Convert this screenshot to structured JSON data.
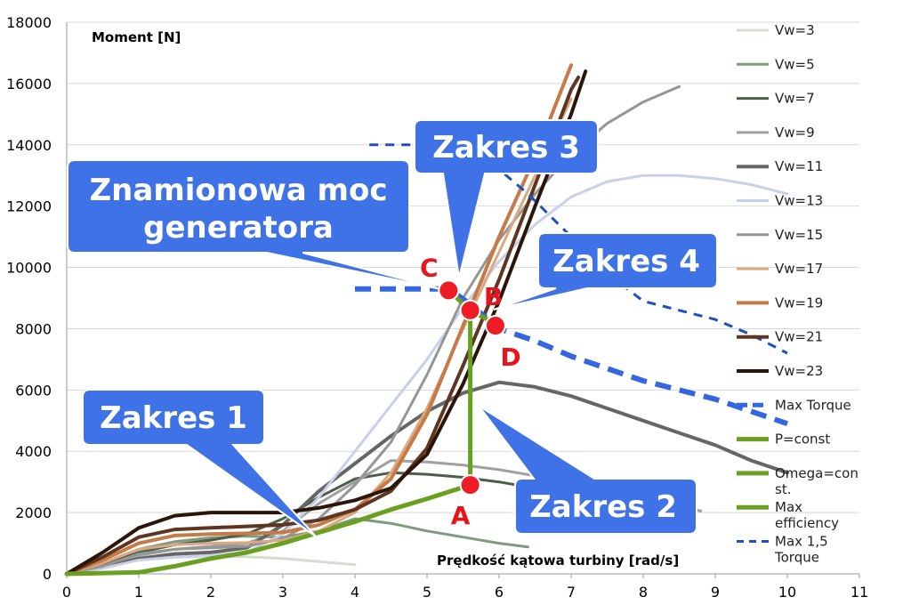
{
  "chart_data": {
    "type": "line",
    "title": "",
    "ylabel": "Moment [N]",
    "xlabel": "Prędkość kątowa turbiny [rad/s]",
    "xlim": [
      0,
      11
    ],
    "ylim": [
      0,
      18000
    ],
    "x_ticks": [
      "0",
      "1",
      "2",
      "3",
      "4",
      "5",
      "6",
      "7",
      "8",
      "9",
      "10",
      "11"
    ],
    "y_ticks": [
      "0",
      "2000",
      "4000",
      "6000",
      "8000",
      "10000",
      "12000",
      "14000",
      "16000",
      "18000"
    ],
    "series": [
      {
        "name": "Vw=3",
        "color": "#d6dcd2",
        "width": 3,
        "points": [
          [
            0,
            0
          ],
          [
            0.5,
            250
          ],
          [
            1,
            450
          ],
          [
            1.5,
            540
          ],
          [
            2,
            570
          ],
          [
            2.5,
            560
          ],
          [
            3,
            500
          ],
          [
            3.5,
            400
          ],
          [
            4,
            300
          ]
        ]
      },
      {
        "name": "Vw=5",
        "color": "#7f9a7f",
        "width": 3,
        "points": [
          [
            0,
            0
          ],
          [
            0.5,
            350
          ],
          [
            1,
            800
          ],
          [
            1.5,
            1050
          ],
          [
            2,
            1180
          ],
          [
            2.5,
            1230
          ],
          [
            3,
            1190
          ],
          [
            3.5,
            1400
          ],
          [
            4,
            1800
          ],
          [
            4.5,
            1650
          ],
          [
            5,
            1400
          ],
          [
            5.5,
            1200
          ],
          [
            6,
            1000
          ],
          [
            6.4,
            880
          ]
        ]
      },
      {
        "name": "Vw=7",
        "color": "#4a5e4a",
        "width": 3,
        "points": [
          [
            0,
            0
          ],
          [
            0.5,
            300
          ],
          [
            1,
            700
          ],
          [
            1.5,
            950
          ],
          [
            2,
            1100
          ],
          [
            2.5,
            1300
          ],
          [
            3,
            1800
          ],
          [
            3.5,
            2500
          ],
          [
            4,
            3100
          ],
          [
            4.5,
            3300
          ],
          [
            5,
            3250
          ],
          [
            5.5,
            3150
          ],
          [
            6,
            3000
          ],
          [
            6.5,
            2800
          ],
          [
            7,
            2500
          ],
          [
            7.5,
            2200
          ],
          [
            7.9,
            2100
          ]
        ]
      },
      {
        "name": "Vw=9",
        "color": "#a0a0a0",
        "width": 3,
        "points": [
          [
            0,
            0
          ],
          [
            0.5,
            250
          ],
          [
            1,
            600
          ],
          [
            1.5,
            800
          ],
          [
            2,
            900
          ],
          [
            2.5,
            1000
          ],
          [
            3,
            1400
          ],
          [
            3.5,
            2300
          ],
          [
            4,
            3000
          ],
          [
            4.5,
            3700
          ],
          [
            5,
            3650
          ],
          [
            5.5,
            3550
          ],
          [
            6,
            3400
          ],
          [
            6.5,
            3200
          ],
          [
            7,
            3000
          ],
          [
            7.5,
            2800
          ],
          [
            8,
            2500
          ],
          [
            8.5,
            2200
          ],
          [
            8.8,
            2050
          ]
        ]
      },
      {
        "name": "Vw=11",
        "color": "#666666",
        "width": 4,
        "points": [
          [
            0,
            0
          ],
          [
            0.5,
            200
          ],
          [
            1,
            500
          ],
          [
            1.5,
            650
          ],
          [
            2,
            700
          ],
          [
            2.5,
            850
          ],
          [
            3,
            1600
          ],
          [
            3.5,
            2700
          ],
          [
            4,
            3600
          ],
          [
            4.5,
            4500
          ],
          [
            5,
            5300
          ],
          [
            5.5,
            5900
          ],
          [
            6,
            6250
          ],
          [
            6.5,
            6100
          ],
          [
            7,
            5800
          ],
          [
            7.5,
            5400
          ],
          [
            8,
            5000
          ],
          [
            8.5,
            4600
          ],
          [
            9,
            4200
          ],
          [
            9.5,
            3700
          ],
          [
            10,
            3300
          ]
        ]
      },
      {
        "name": "Vw=13",
        "color": "#c8d0ea",
        "width": 3,
        "points": [
          [
            0,
            0
          ],
          [
            0.5,
            180
          ],
          [
            1,
            450
          ],
          [
            1.5,
            550
          ],
          [
            2,
            600
          ],
          [
            2.5,
            700
          ],
          [
            3,
            1300
          ],
          [
            3.5,
            2500
          ],
          [
            4,
            4000
          ],
          [
            4.5,
            5500
          ],
          [
            5,
            7000
          ],
          [
            5.5,
            8700
          ],
          [
            6,
            10200
          ],
          [
            6.5,
            11400
          ],
          [
            7,
            12300
          ],
          [
            7.5,
            12800
          ],
          [
            8,
            13000
          ],
          [
            8.5,
            13000
          ],
          [
            9,
            12900
          ],
          [
            9.5,
            12700
          ],
          [
            10,
            12400
          ]
        ]
      },
      {
        "name": "Vw=15",
        "color": "#969696",
        "width": 3,
        "points": [
          [
            0,
            0
          ],
          [
            0.5,
            250
          ],
          [
            1,
            650
          ],
          [
            1.5,
            800
          ],
          [
            2,
            850
          ],
          [
            2.5,
            900
          ],
          [
            3,
            1150
          ],
          [
            3.5,
            1800
          ],
          [
            4,
            2900
          ],
          [
            4.5,
            4300
          ],
          [
            5,
            6500
          ],
          [
            5.5,
            9000
          ],
          [
            6,
            10900
          ],
          [
            6.5,
            12400
          ],
          [
            7,
            13700
          ],
          [
            7.5,
            14700
          ],
          [
            8,
            15400
          ],
          [
            8.5,
            15900
          ]
        ]
      },
      {
        "name": "Vw=17",
        "color": "#dba87f",
        "width": 3,
        "points": [
          [
            0,
            0
          ],
          [
            0.5,
            350
          ],
          [
            1,
            800
          ],
          [
            1.5,
            950
          ],
          [
            2,
            1000
          ],
          [
            2.5,
            1020
          ],
          [
            3,
            1100
          ],
          [
            3.5,
            1400
          ],
          [
            4,
            2000
          ],
          [
            4.5,
            3300
          ],
          [
            5,
            5400
          ],
          [
            5.5,
            8000
          ],
          [
            6,
            10500
          ],
          [
            6.5,
            13000
          ],
          [
            7,
            15500
          ]
        ]
      },
      {
        "name": "Vw=19",
        "color": "#c57a48",
        "width": 4,
        "points": [
          [
            0,
            0
          ],
          [
            0.5,
            450
          ],
          [
            1,
            1000
          ],
          [
            1.5,
            1250
          ],
          [
            2,
            1300
          ],
          [
            2.5,
            1320
          ],
          [
            3,
            1350
          ],
          [
            3.5,
            1600
          ],
          [
            4,
            2100
          ],
          [
            4.5,
            3100
          ],
          [
            5,
            5200
          ],
          [
            5.5,
            8100
          ],
          [
            6,
            11000
          ],
          [
            6.5,
            13600
          ],
          [
            7,
            16600
          ]
        ]
      },
      {
        "name": "Vw=21",
        "color": "#5e3520",
        "width": 4,
        "points": [
          [
            0,
            0
          ],
          [
            0.5,
            550
          ],
          [
            1,
            1200
          ],
          [
            1.5,
            1450
          ],
          [
            2,
            1500
          ],
          [
            2.5,
            1550
          ],
          [
            3,
            1600
          ],
          [
            3.5,
            1750
          ],
          [
            4,
            2100
          ],
          [
            4.5,
            2700
          ],
          [
            5,
            4100
          ],
          [
            5.5,
            6800
          ],
          [
            6,
            9600
          ],
          [
            6.5,
            12700
          ],
          [
            7,
            15800
          ],
          [
            7.1,
            16200
          ]
        ]
      },
      {
        "name": "Vw=23",
        "color": "#2a1508",
        "width": 4,
        "points": [
          [
            0,
            0
          ],
          [
            0.5,
            700
          ],
          [
            1,
            1500
          ],
          [
            1.5,
            1900
          ],
          [
            2,
            2000
          ],
          [
            2.5,
            2000
          ],
          [
            3,
            2000
          ],
          [
            3.5,
            2150
          ],
          [
            4,
            2400
          ],
          [
            4.5,
            2800
          ],
          [
            5,
            3900
          ],
          [
            5.5,
            6200
          ],
          [
            6,
            8900
          ],
          [
            6.5,
            12000
          ],
          [
            7,
            15000
          ],
          [
            7.2,
            16400
          ]
        ]
      },
      {
        "name": "Max Torque",
        "color": "#3366e0",
        "width": 6,
        "dash": "18,10",
        "points": [
          [
            4,
            9300
          ],
          [
            5.3,
            9300
          ],
          [
            5.6,
            8800
          ],
          [
            6,
            8000
          ],
          [
            6.5,
            7600
          ],
          [
            7,
            7100
          ],
          [
            7.5,
            6700
          ],
          [
            8,
            6300
          ],
          [
            8.5,
            6000
          ],
          [
            9,
            5700
          ],
          [
            9.5,
            5300
          ],
          [
            10,
            4900
          ]
        ]
      },
      {
        "name": "P=const",
        "color": "#6aa020",
        "width": 5,
        "points": [
          [
            5.3,
            9250
          ],
          [
            5.6,
            8600
          ],
          [
            6,
            8100
          ]
        ]
      },
      {
        "name": "Omega=const.",
        "color": "#6aa020",
        "width": 5,
        "points": [
          [
            5.6,
            2900
          ],
          [
            5.6,
            8600
          ]
        ]
      },
      {
        "name": "Max efficiency",
        "color": "#6aa020",
        "width": 5,
        "points": [
          [
            0,
            0
          ],
          [
            1,
            50
          ],
          [
            1.5,
            250
          ],
          [
            2,
            500
          ],
          [
            2.5,
            700
          ],
          [
            3,
            1000
          ],
          [
            3.5,
            1350
          ],
          [
            4,
            1700
          ],
          [
            4.5,
            2100
          ],
          [
            5,
            2450
          ],
          [
            5.6,
            2900
          ]
        ]
      },
      {
        "name": "Max 1,5 Torque",
        "color": "#1f4fc4",
        "width": 3,
        "dash": "10,8",
        "points": [
          [
            4.2,
            14000
          ],
          [
            5.4,
            14000
          ],
          [
            5.8,
            13600
          ],
          [
            6.4,
            12400
          ],
          [
            7,
            11000
          ],
          [
            7.5,
            9800
          ],
          [
            8,
            8900
          ],
          [
            8.5,
            8600
          ],
          [
            9,
            8300
          ],
          [
            9.5,
            7800
          ],
          [
            10,
            7200
          ]
        ]
      }
    ],
    "points": [
      {
        "label": "C",
        "x": 5.3,
        "y": 9250
      },
      {
        "label": "B",
        "x": 5.6,
        "y": 8600
      },
      {
        "label": "D",
        "x": 5.95,
        "y": 8100
      },
      {
        "label": "A",
        "x": 5.6,
        "y": 2900
      }
    ],
    "callouts": [
      {
        "text": "Zakres 3"
      },
      {
        "text": "Znamionowa moc\ngeneratora"
      },
      {
        "text": "Zakres 4"
      },
      {
        "text": "Zakres 1"
      },
      {
        "text": "Zakres 2"
      }
    ],
    "legend": [
      {
        "label": "Vw=3"
      },
      {
        "label": "Vw=5"
      },
      {
        "label": "Vw=7"
      },
      {
        "label": "Vw=9"
      },
      {
        "label": "Vw=11"
      },
      {
        "label": "Vw=13"
      },
      {
        "label": "Vw=15"
      },
      {
        "label": "Vw=17"
      },
      {
        "label": "Vw=19"
      },
      {
        "label": "Vw=21"
      },
      {
        "label": "Vw=23"
      },
      {
        "label": "Max Torque"
      },
      {
        "label": "P=const"
      },
      {
        "label": "Omega=con\nst."
      },
      {
        "label": "Max\nefficiency"
      },
      {
        "label": "Max 1,5\nTorque"
      }
    ]
  }
}
